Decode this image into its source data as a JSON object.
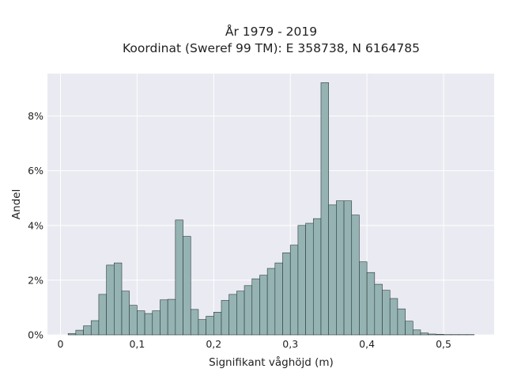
{
  "chart_data": {
    "type": "bar",
    "title_line1": "År 1979 - 2019",
    "title_line2": "Koordinat (Sweref 99 TM): E 358738, N 6164785",
    "xlabel": "Signifikant våghöjd (m)",
    "ylabel": "Andel",
    "xlim": [
      -0.017,
      0.566
    ],
    "ylim": [
      0,
      0.0955
    ],
    "x_ticks": [
      0,
      0.1,
      0.2,
      0.3,
      0.4,
      0.5
    ],
    "x_tick_labels": [
      "0",
      "0,1",
      "0,2",
      "0,3",
      "0,4",
      "0,5"
    ],
    "y_ticks": [
      0,
      0.02,
      0.04,
      0.06,
      0.08
    ],
    "y_tick_labels": [
      "0%",
      "2%",
      "4%",
      "6%",
      "8%"
    ],
    "grid": true,
    "bin_width": 0.01,
    "bin_starts": [
      0.01,
      0.02,
      0.03,
      0.04,
      0.05,
      0.06,
      0.07,
      0.08,
      0.09,
      0.1,
      0.11,
      0.12,
      0.13,
      0.14,
      0.15,
      0.16,
      0.17,
      0.18,
      0.19,
      0.2,
      0.21,
      0.22,
      0.23,
      0.24,
      0.25,
      0.26,
      0.27,
      0.28,
      0.29,
      0.3,
      0.31,
      0.32,
      0.33,
      0.34,
      0.35,
      0.36,
      0.37,
      0.38,
      0.39,
      0.4,
      0.41,
      0.42,
      0.43,
      0.44,
      0.45,
      0.46,
      0.47,
      0.48,
      0.49,
      0.5,
      0.51,
      0.52,
      0.53
    ],
    "values": [
      0.0005,
      0.0017,
      0.0033,
      0.0052,
      0.0148,
      0.0255,
      0.0263,
      0.016,
      0.0108,
      0.0088,
      0.0078,
      0.0088,
      0.0128,
      0.013,
      0.042,
      0.036,
      0.0093,
      0.0056,
      0.0068,
      0.0083,
      0.0126,
      0.0148,
      0.016,
      0.018,
      0.0205,
      0.0218,
      0.0243,
      0.0263,
      0.03,
      0.0328,
      0.04,
      0.0408,
      0.0425,
      0.0922,
      0.0475,
      0.049,
      0.049,
      0.0438,
      0.0267,
      0.0228,
      0.0185,
      0.0163,
      0.0133,
      0.0095,
      0.005,
      0.0018,
      0.0007,
      0.0003,
      0.0002,
      0.0001,
      0.0001,
      0.0001,
      0.0001
    ],
    "colors": {
      "bar_fill": "#96b3b3",
      "bar_edge": "#2b3a3a",
      "plot_bg": "#eaeaf2",
      "grid": "#ffffff"
    }
  }
}
